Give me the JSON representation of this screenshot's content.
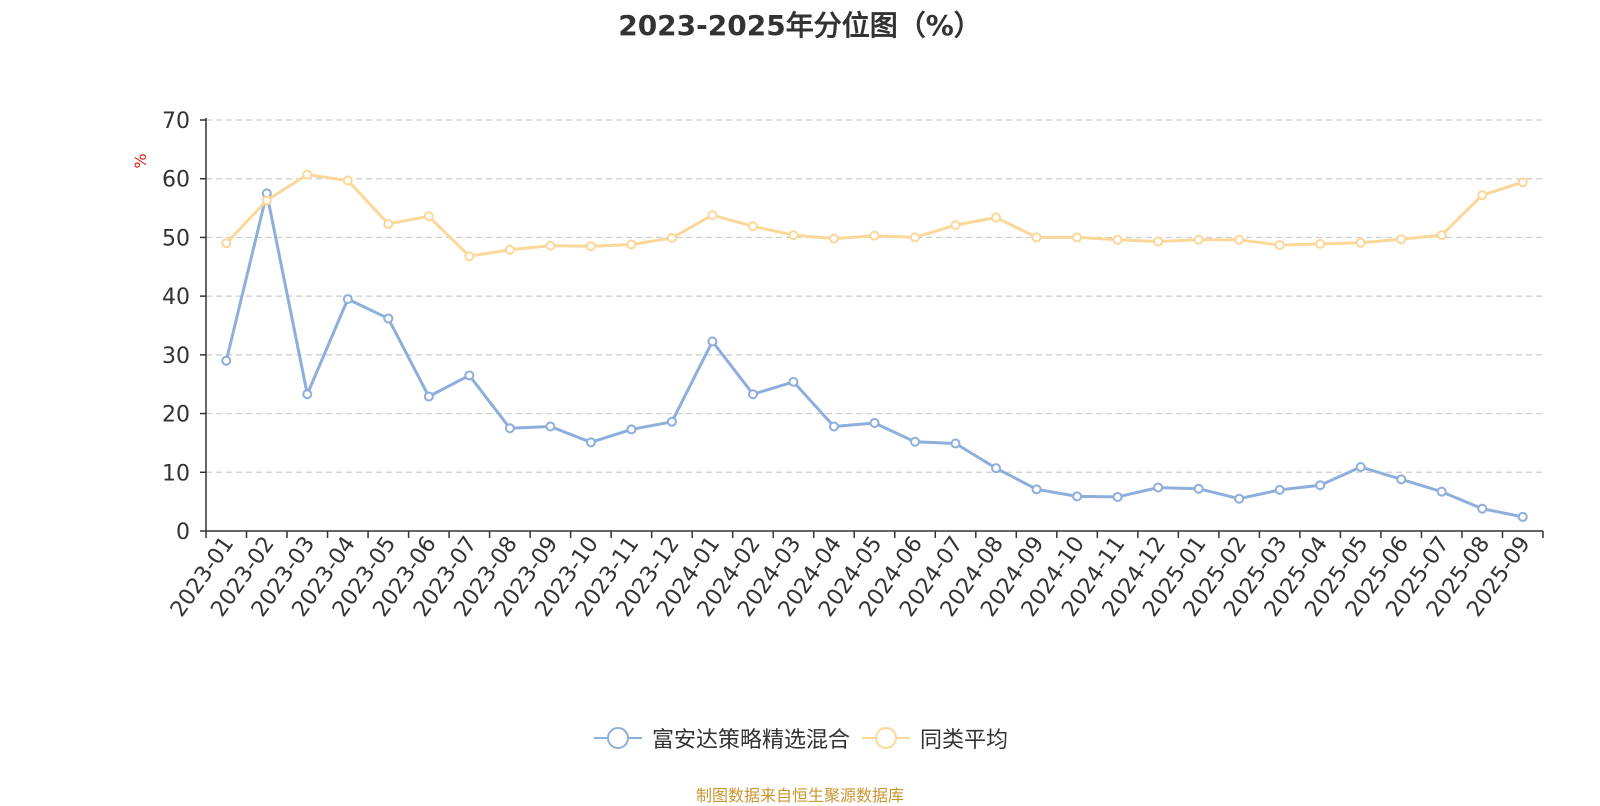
{
  "chart_data": {
    "type": "line",
    "title": "2023-2025年分位图（%）",
    "ylabel": "%",
    "ylim": [
      0,
      70
    ],
    "yticks": [
      0,
      10,
      20,
      30,
      40,
      50,
      60,
      70
    ],
    "grid": true,
    "legend_position": "bottom",
    "categories": [
      "2023-01",
      "2023-02",
      "2023-03",
      "2023-04",
      "2023-05",
      "2023-06",
      "2023-07",
      "2023-08",
      "2023-09",
      "2023-10",
      "2023-11",
      "2023-12",
      "2024-01",
      "2024-02",
      "2024-03",
      "2024-04",
      "2024-05",
      "2024-06",
      "2024-07",
      "2024-08",
      "2024-09",
      "2024-10",
      "2024-11",
      "2024-12",
      "2025-01",
      "2025-02",
      "2025-03",
      "2025-04",
      "2025-05",
      "2025-06",
      "2025-07",
      "2025-08",
      "2025-09"
    ],
    "series": [
      {
        "name": "富安达策略精选混合",
        "color": "#8eaedb",
        "values": [
          29.0,
          57.5,
          23.3,
          39.5,
          36.2,
          22.9,
          26.5,
          17.5,
          17.8,
          15.1,
          17.3,
          18.6,
          32.3,
          23.3,
          25.4,
          17.8,
          18.4,
          15.2,
          14.9,
          10.7,
          7.1,
          5.9,
          5.8,
          7.4,
          7.2,
          5.5,
          7.0,
          7.8,
          10.9,
          8.8,
          6.7,
          3.8,
          2.4
        ]
      },
      {
        "name": "同类平均",
        "color": "#fbd899",
        "values": [
          49.0,
          56.3,
          60.7,
          59.7,
          52.3,
          53.6,
          46.8,
          47.9,
          48.6,
          48.5,
          48.8,
          49.9,
          53.8,
          51.9,
          50.4,
          49.8,
          50.3,
          50.0,
          52.1,
          53.4,
          50.0,
          50.0,
          49.6,
          49.3,
          49.6,
          49.6,
          48.7,
          48.9,
          49.1,
          49.7,
          50.4,
          57.2,
          59.4
        ]
      }
    ],
    "source_note": "制图数据来自恒生聚源数据库"
  }
}
